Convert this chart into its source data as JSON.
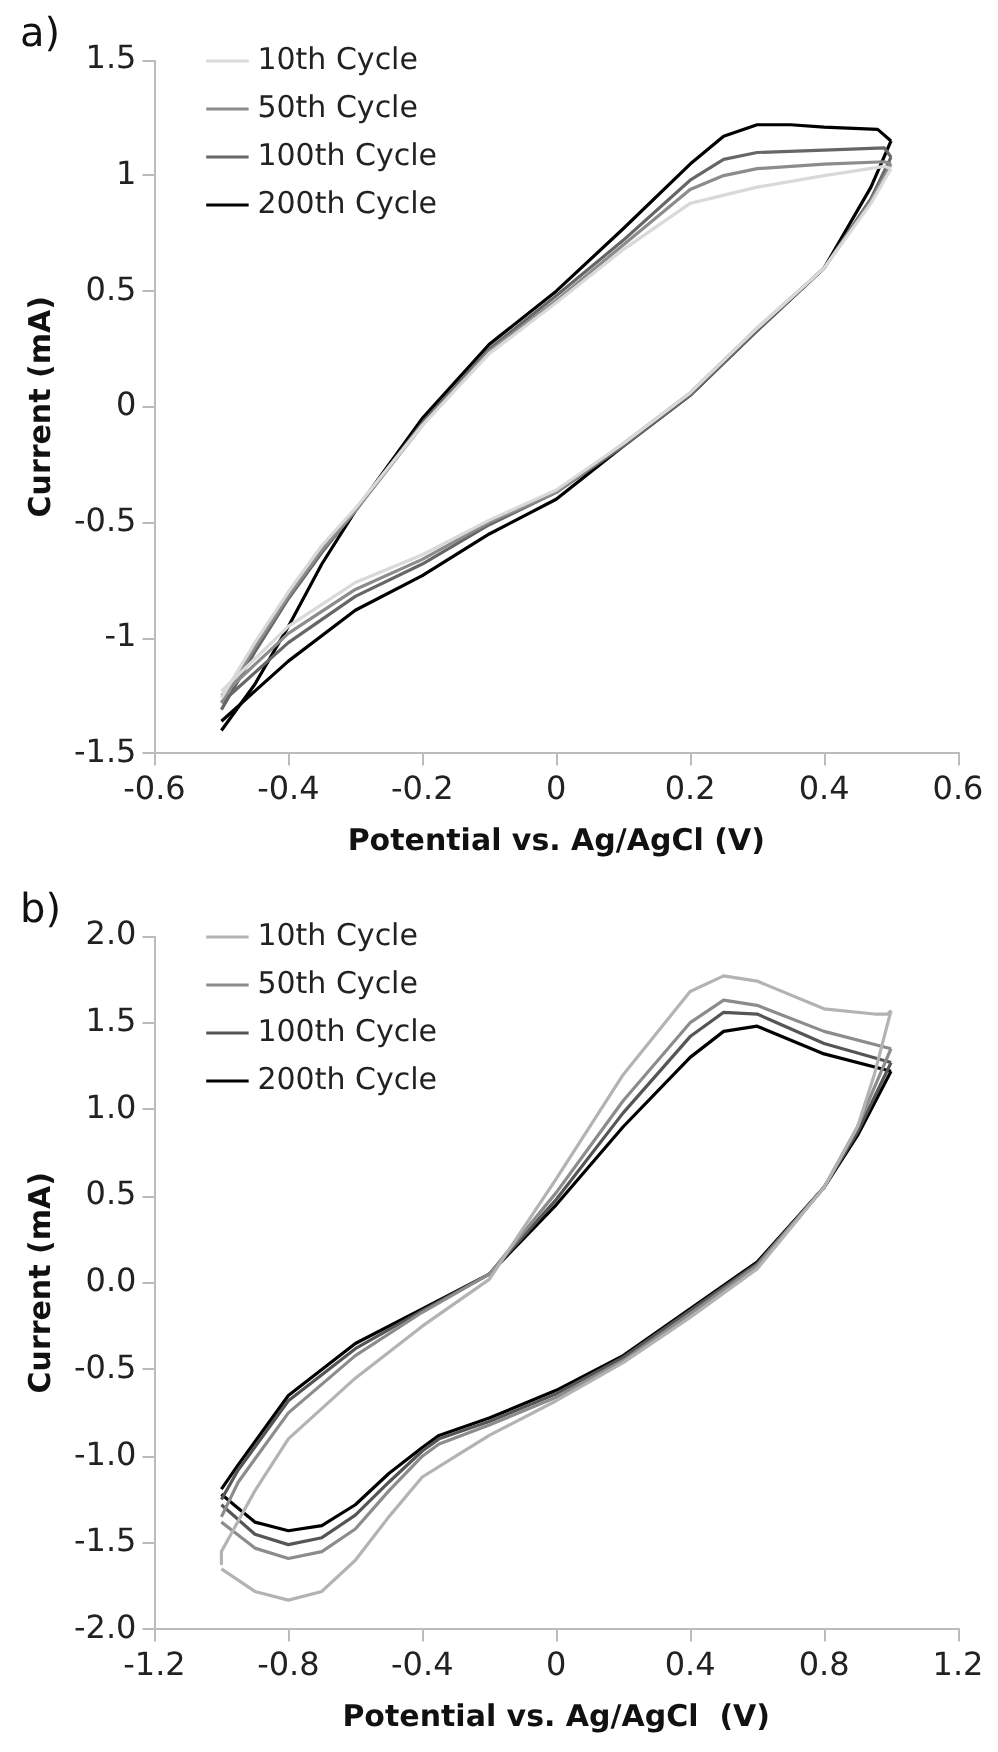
{
  "chart_data": [
    {
      "type": "line",
      "title": "a)",
      "xlabel": "Potential vs. Ag/AgCl (V)",
      "ylabel": "Current (mA)",
      "xlim": [
        -0.6,
        0.6
      ],
      "xticks": [
        -0.6,
        -0.4,
        -0.2,
        0,
        0.2,
        0.4,
        0.6
      ],
      "ylim": [
        -1.5,
        1.5
      ],
      "yticks": [
        -1.5,
        -1,
        -0.5,
        0,
        0.5,
        1,
        1.5
      ],
      "grid": false,
      "legend": "top left",
      "marker": "none",
      "line_style": "solid",
      "series": [
        {
          "name": "10th Cycle",
          "color": "#d9d9d9",
          "x": [
            -0.5,
            -0.45,
            -0.4,
            -0.35,
            -0.3,
            -0.2,
            -0.1,
            0,
            0.1,
            0.2,
            0.3,
            0.4,
            0.49,
            0.5
          ],
          "values": [
            -1.26,
            -1.02,
            -0.8,
            -0.6,
            -0.44,
            -0.08,
            0.23,
            0.45,
            0.68,
            0.88,
            0.95,
            1.0,
            1.04,
            1.03
          ]
        },
        {
          "color": "#d9d9d9",
          "x": [
            0.5,
            0.47,
            0.4,
            0.3,
            0.2,
            0.1,
            0,
            -0.1,
            -0.2,
            -0.3,
            -0.4,
            -0.5
          ],
          "values": [
            1.03,
            0.88,
            0.6,
            0.34,
            0.06,
            -0.16,
            -0.36,
            -0.49,
            -0.64,
            -0.76,
            -0.95,
            -1.23
          ]
        },
        {
          "name": "50th Cycle",
          "color": "#8c8c8c",
          "x": [
            -0.5,
            -0.45,
            -0.4,
            -0.35,
            -0.3,
            -0.2,
            -0.1,
            0,
            0.1,
            0.2,
            0.25,
            0.3,
            0.4,
            0.49,
            0.5
          ],
          "values": [
            -1.28,
            -1.04,
            -0.82,
            -0.62,
            -0.45,
            -0.08,
            0.24,
            0.46,
            0.7,
            0.94,
            1.0,
            1.03,
            1.05,
            1.06,
            1.05
          ]
        },
        {
          "color": "#8c8c8c",
          "x": [
            0.5,
            0.47,
            0.4,
            0.3,
            0.2,
            0.1,
            0,
            -0.1,
            -0.2,
            -0.3,
            -0.4,
            -0.5
          ],
          "values": [
            1.05,
            0.89,
            0.6,
            0.34,
            0.06,
            -0.16,
            -0.37,
            -0.5,
            -0.66,
            -0.79,
            -0.98,
            -1.25
          ]
        },
        {
          "name": "100th Cycle",
          "color": "#666666",
          "x": [
            -0.5,
            -0.45,
            -0.4,
            -0.35,
            -0.3,
            -0.2,
            -0.1,
            0,
            0.1,
            0.2,
            0.25,
            0.3,
            0.4,
            0.49,
            0.5
          ],
          "values": [
            -1.31,
            -1.06,
            -0.83,
            -0.63,
            -0.45,
            -0.07,
            0.25,
            0.48,
            0.72,
            0.98,
            1.07,
            1.1,
            1.11,
            1.12,
            1.08
          ]
        },
        {
          "color": "#666666",
          "x": [
            0.5,
            0.47,
            0.4,
            0.3,
            0.2,
            0.1,
            0,
            -0.1,
            -0.2,
            -0.3,
            -0.4,
            -0.5
          ],
          "values": [
            1.08,
            0.9,
            0.6,
            0.33,
            0.05,
            -0.17,
            -0.37,
            -0.51,
            -0.68,
            -0.82,
            -1.02,
            -1.28
          ]
        },
        {
          "name": "200th Cycle",
          "color": "#000000",
          "x": [
            -0.5,
            -0.45,
            -0.4,
            -0.35,
            -0.3,
            -0.2,
            -0.1,
            0,
            0.1,
            0.2,
            0.25,
            0.3,
            0.35,
            0.4,
            0.48,
            0.5
          ],
          "values": [
            -1.4,
            -1.2,
            -0.95,
            -0.68,
            -0.45,
            -0.05,
            0.27,
            0.5,
            0.77,
            1.05,
            1.17,
            1.22,
            1.22,
            1.21,
            1.2,
            1.15
          ]
        },
        {
          "color": "#000000",
          "x": [
            0.5,
            0.47,
            0.4,
            0.3,
            0.2,
            0.1,
            0,
            -0.1,
            -0.2,
            -0.3,
            -0.4,
            -0.5
          ],
          "values": [
            1.15,
            0.95,
            0.6,
            0.33,
            0.05,
            -0.17,
            -0.4,
            -0.55,
            -0.73,
            -0.88,
            -1.1,
            -1.36
          ]
        }
      ]
    },
    {
      "type": "line",
      "title": "b)",
      "xlabel": "Potential vs. Ag/AgCl  (V)",
      "ylabel": "Current (mA)",
      "xlim": [
        -1.2,
        1.2
      ],
      "xticks": [
        -1.2,
        -0.8,
        -0.4,
        0,
        0.4,
        0.8,
        1.2
      ],
      "ylim": [
        -2,
        2
      ],
      "yticks": [
        {
          "value": -2,
          "label": "-2.0"
        },
        {
          "value": -1.5,
          "label": "-1.5"
        },
        {
          "value": -1,
          "label": "-1.0"
        },
        {
          "value": -0.5,
          "label": "-0.5"
        },
        {
          "value": 0,
          "label": "0.0"
        },
        {
          "value": 0.5,
          "label": "0.5"
        },
        {
          "value": 1,
          "label": "1.0"
        },
        {
          "value": 1.5,
          "label": "1.5"
        },
        {
          "value": 2,
          "label": "2.0"
        }
      ],
      "grid": false,
      "legend": "top left",
      "marker": "none",
      "line_style": "solid",
      "series": [
        {
          "name": "10th Cycle",
          "color": "#b3b3b3",
          "x": [
            -1,
            -0.9,
            -0.8,
            -0.7,
            -0.6,
            -0.5,
            -0.4,
            -0.3,
            -0.2,
            0,
            0.2,
            0.4,
            0.6,
            0.8,
            0.9,
            0.95,
            1
          ],
          "values": [
            -1.65,
            -1.78,
            -1.83,
            -1.78,
            -1.6,
            -1.35,
            -1.12,
            -1.0,
            -0.88,
            -0.68,
            -0.46,
            -0.2,
            0.08,
            0.55,
            0.9,
            1.2,
            1.57
          ]
        },
        {
          "color": "#b3b3b3",
          "x": [
            1,
            0.99,
            0.95,
            0.8,
            0.6,
            0.5,
            0.4,
            0.2,
            0,
            -0.2,
            -0.4,
            -0.6,
            -0.8,
            -0.9,
            -1,
            -1
          ],
          "values": [
            1.57,
            1.55,
            1.55,
            1.58,
            1.74,
            1.77,
            1.68,
            1.2,
            0.6,
            0.02,
            -0.25,
            -0.55,
            -0.9,
            -1.2,
            -1.55,
            -1.62
          ]
        },
        {
          "name": "50th Cycle",
          "color": "#8c8c8c",
          "x": [
            -1,
            -0.9,
            -0.8,
            -0.7,
            -0.6,
            -0.5,
            -0.4,
            -0.35,
            -0.2,
            0,
            0.2,
            0.4,
            0.6,
            0.8,
            0.9,
            1
          ],
          "values": [
            -1.38,
            -1.53,
            -1.59,
            -1.55,
            -1.42,
            -1.2,
            -1.0,
            -0.93,
            -0.82,
            -0.66,
            -0.45,
            -0.18,
            0.1,
            0.55,
            0.9,
            1.35
          ]
        },
        {
          "color": "#8c8c8c",
          "x": [
            1,
            0.8,
            0.6,
            0.5,
            0.4,
            0.2,
            0,
            -0.2,
            -0.4,
            -0.6,
            -0.8,
            -0.95,
            -1
          ],
          "values": [
            1.35,
            1.45,
            1.6,
            1.63,
            1.5,
            1.05,
            0.52,
            0.05,
            -0.17,
            -0.42,
            -0.75,
            -1.15,
            -1.35
          ]
        },
        {
          "name": "100th Cycle",
          "color": "#555555",
          "x": [
            -1,
            -0.9,
            -0.8,
            -0.7,
            -0.6,
            -0.5,
            -0.4,
            -0.35,
            -0.2,
            0,
            0.2,
            0.4,
            0.6,
            0.8,
            0.9,
            1
          ],
          "values": [
            -1.28,
            -1.45,
            -1.51,
            -1.47,
            -1.34,
            -1.15,
            -0.97,
            -0.9,
            -0.8,
            -0.64,
            -0.43,
            -0.16,
            0.11,
            0.55,
            0.87,
            1.27
          ]
        },
        {
          "color": "#555555",
          "x": [
            1,
            0.8,
            0.6,
            0.5,
            0.4,
            0.2,
            0,
            -0.2,
            -0.4,
            -0.6,
            -0.8,
            -0.95,
            -1
          ],
          "values": [
            1.27,
            1.38,
            1.55,
            1.56,
            1.42,
            0.98,
            0.48,
            0.05,
            -0.16,
            -0.38,
            -0.68,
            -1.08,
            -1.25
          ]
        },
        {
          "name": "200th Cycle",
          "color": "#000000",
          "x": [
            -1,
            -0.95,
            -0.9,
            -0.8,
            -0.7,
            -0.6,
            -0.5,
            -0.4,
            -0.35,
            -0.2,
            0,
            0.2,
            0.4,
            0.6,
            0.8,
            0.9,
            1
          ],
          "values": [
            -1.22,
            -1.3,
            -1.38,
            -1.43,
            -1.4,
            -1.28,
            -1.1,
            -0.95,
            -0.88,
            -0.78,
            -0.62,
            -0.42,
            -0.15,
            0.12,
            0.55,
            0.85,
            1.22
          ]
        },
        {
          "color": "#000000",
          "x": [
            1,
            0.8,
            0.6,
            0.5,
            0.4,
            0.2,
            0,
            -0.2,
            -0.4,
            -0.6,
            -0.8,
            -0.95,
            -1
          ],
          "values": [
            1.22,
            1.32,
            1.48,
            1.45,
            1.3,
            0.9,
            0.45,
            0.05,
            -0.15,
            -0.35,
            -0.65,
            -1.05,
            -1.19
          ]
        }
      ]
    }
  ]
}
